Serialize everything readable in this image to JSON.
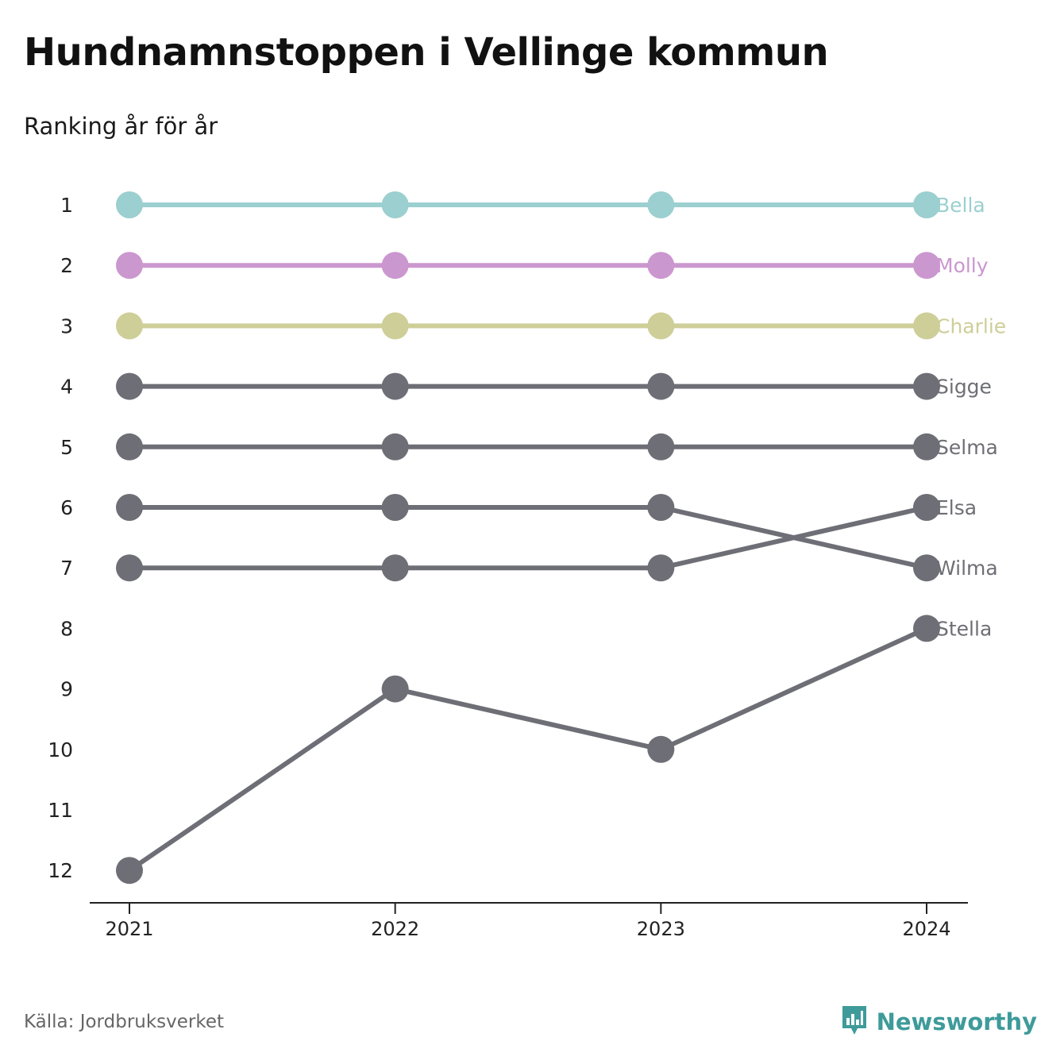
{
  "title": "Hundnamnstoppen i Vellinge kommun",
  "subtitle": "Ranking år för år",
  "source": "Källa: Jordbruksverket",
  "brand": {
    "name": "Newsworthy",
    "icon": "newsworthy-logo-icon",
    "color": "#3e9b9a"
  },
  "chart_data": {
    "type": "line",
    "x": [
      "2021",
      "2022",
      "2023",
      "2024"
    ],
    "y_ticks": [
      1,
      2,
      3,
      4,
      5,
      6,
      7,
      8,
      9,
      10,
      11,
      12
    ],
    "ylim": [
      1,
      12
    ],
    "y_inverted": true,
    "grid": false,
    "legend": "direct labels at right end",
    "series": [
      {
        "name": "Bella",
        "color": "#9ccfcf",
        "values": [
          1,
          1,
          1,
          1
        ]
      },
      {
        "name": "Molly",
        "color": "#cb97cf",
        "values": [
          2,
          2,
          2,
          2
        ]
      },
      {
        "name": "Charlie",
        "color": "#cece99",
        "values": [
          3,
          3,
          3,
          3
        ]
      },
      {
        "name": "Sigge",
        "color": "#6e6e76",
        "values": [
          4,
          4,
          4,
          4
        ]
      },
      {
        "name": "Selma",
        "color": "#6e6e76",
        "values": [
          5,
          5,
          5,
          5
        ]
      },
      {
        "name": "Elsa",
        "color": "#6e6e76",
        "values": [
          7,
          7,
          7,
          6
        ]
      },
      {
        "name": "Wilma",
        "color": "#6e6e76",
        "values": [
          6,
          6,
          6,
          7
        ]
      },
      {
        "name": "Stella",
        "color": "#6e6e76",
        "values": [
          12,
          9,
          10,
          8
        ]
      }
    ]
  }
}
